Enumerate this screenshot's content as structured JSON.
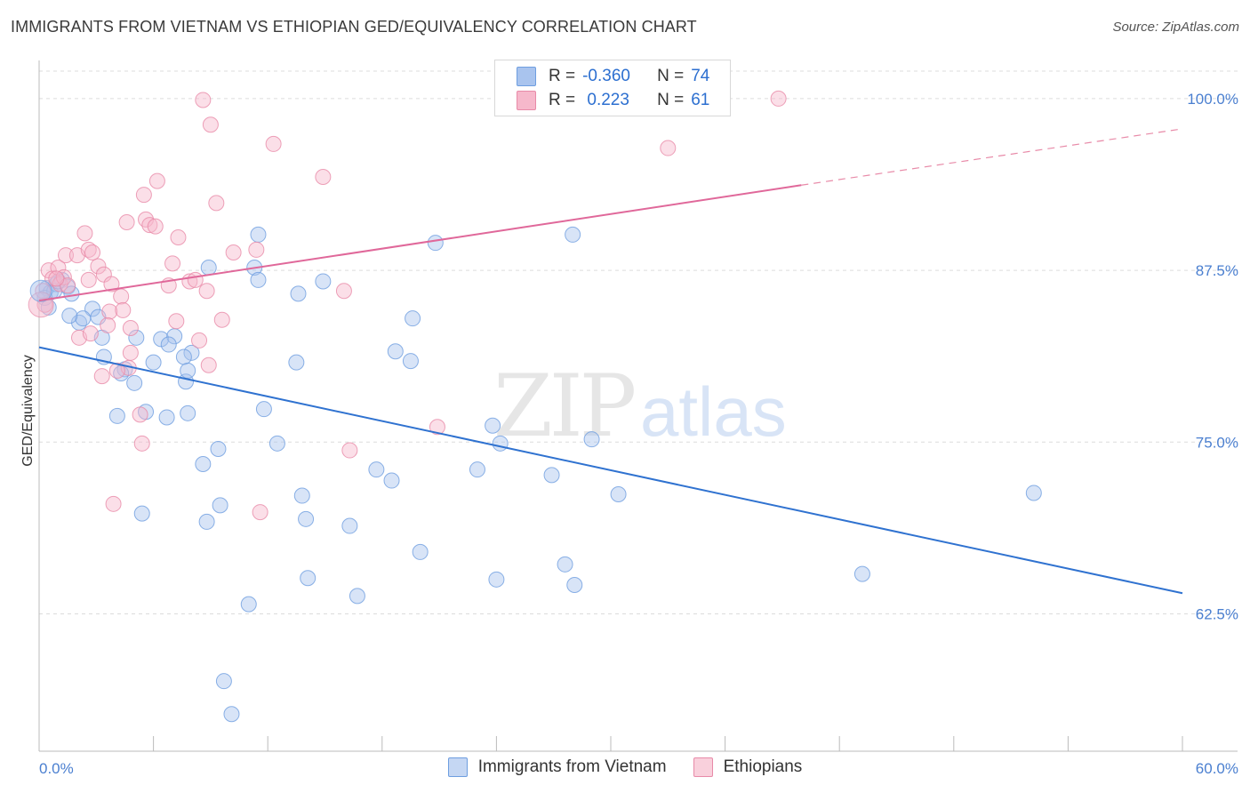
{
  "title": "IMMIGRANTS FROM VIETNAM VS ETHIOPIAN GED/EQUIVALENCY CORRELATION CHART",
  "source": "Source: ZipAtlas.com",
  "watermark": {
    "zip": "ZIP",
    "atlas": "atlas"
  },
  "legend": {
    "rows": [
      {
        "r_label": "R =",
        "r_value": "-0.360",
        "n_label": "N =",
        "n_value": "74",
        "color": "#a9c4ee",
        "border": "#6e9ee0"
      },
      {
        "r_label": "R =",
        "r_value": " 0.223",
        "n_label": "N =",
        "n_value": "61",
        "color": "#f6b8cb",
        "border": "#e88aa8"
      }
    ]
  },
  "bottom_legend": [
    {
      "label": "Immigrants from Vietnam",
      "color": "#c5d7f3",
      "border": "#6e9ee0"
    },
    {
      "label": "Ethiopians",
      "color": "#f9d0dc",
      "border": "#e88aa8"
    }
  ],
  "chart_data": {
    "type": "scatter",
    "title": "IMMIGRANTS FROM VIETNAM VS ETHIOPIAN GED/EQUIVALENCY CORRELATION CHART",
    "xlabel": "",
    "ylabel": "GED/Equivalency",
    "xlim": [
      0,
      60
    ],
    "ylim": [
      52.5,
      102
    ],
    "x_tick_labels": [
      "0.0%",
      "60.0%"
    ],
    "y_ticks": [
      62.5,
      75.0,
      87.5,
      100.0
    ],
    "y_tick_labels": [
      "62.5%",
      "75.0%",
      "87.5%",
      "100.0%"
    ],
    "grid": true,
    "legend_position": "top-center",
    "series": [
      {
        "name": "Immigrants from Vietnam",
        "color": "#6e9ee0",
        "fill": "#a9c4ee",
        "trend": {
          "x": [
            0,
            60
          ],
          "y": [
            81.9,
            64.0
          ],
          "dashed_from": null
        },
        "points": [
          [
            0.4,
            86.2
          ],
          [
            0.6,
            85.9
          ],
          [
            0.9,
            86.5
          ],
          [
            1.2,
            86.8
          ],
          [
            1.5,
            86.3
          ],
          [
            1.7,
            85.8
          ],
          [
            0.3,
            85.5
          ],
          [
            2.1,
            83.7
          ],
          [
            2.8,
            84.7
          ],
          [
            2.3,
            84.0
          ],
          [
            3.1,
            84.1
          ],
          [
            3.3,
            82.6
          ],
          [
            3.4,
            81.2
          ],
          [
            4.5,
            80.3
          ],
          [
            4.3,
            80.0
          ],
          [
            5.1,
            82.6
          ],
          [
            5.0,
            79.3
          ],
          [
            6.4,
            82.5
          ],
          [
            6.0,
            80.8
          ],
          [
            7.1,
            82.7
          ],
          [
            8.0,
            81.5
          ],
          [
            7.6,
            81.2
          ],
          [
            7.7,
            79.4
          ],
          [
            7.8,
            80.2
          ],
          [
            4.1,
            76.9
          ],
          [
            5.6,
            77.2
          ],
          [
            6.7,
            76.8
          ],
          [
            7.8,
            77.1
          ],
          [
            8.9,
            87.7
          ],
          [
            11.3,
            87.7
          ],
          [
            11.5,
            86.8
          ],
          [
            11.5,
            90.1
          ],
          [
            13.6,
            85.8
          ],
          [
            14.9,
            86.7
          ],
          [
            13.5,
            80.8
          ],
          [
            11.8,
            77.4
          ],
          [
            12.5,
            74.9
          ],
          [
            9.4,
            74.5
          ],
          [
            8.6,
            73.4
          ],
          [
            5.4,
            69.8
          ],
          [
            8.8,
            69.2
          ],
          [
            9.5,
            70.4
          ],
          [
            13.8,
            71.1
          ],
          [
            14.0,
            69.4
          ],
          [
            16.3,
            68.9
          ],
          [
            17.7,
            73.0
          ],
          [
            18.5,
            72.2
          ],
          [
            18.7,
            81.6
          ],
          [
            19.5,
            80.9
          ],
          [
            20.0,
            67.0
          ],
          [
            19.6,
            84.0
          ],
          [
            20.8,
            89.5
          ],
          [
            14.1,
            65.1
          ],
          [
            16.7,
            63.8
          ],
          [
            11.0,
            63.2
          ],
          [
            9.7,
            57.6
          ],
          [
            10.1,
            55.2
          ],
          [
            23.0,
            73.0
          ],
          [
            23.8,
            76.2
          ],
          [
            24.2,
            74.9
          ],
          [
            26.9,
            72.6
          ],
          [
            24.0,
            65.0
          ],
          [
            29.0,
            75.2
          ],
          [
            30.4,
            71.2
          ],
          [
            28.0,
            90.1
          ],
          [
            27.6,
            66.1
          ],
          [
            28.1,
            64.6
          ],
          [
            43.2,
            65.4
          ],
          [
            52.2,
            71.3
          ],
          [
            0.8,
            86.0
          ],
          [
            1.0,
            86.7
          ],
          [
            0.5,
            84.8
          ],
          [
            6.8,
            82.1
          ],
          [
            1.6,
            84.2
          ]
        ]
      },
      {
        "name": "Ethiopians",
        "color": "#e88aa8",
        "fill": "#f6b8cb",
        "trend": {
          "x": [
            0,
            40
          ],
          "y": [
            85.3,
            93.7
          ],
          "dashed_from": 40,
          "dashed_to": [
            60,
            97.8
          ]
        },
        "points": [
          [
            0.3,
            85.0
          ],
          [
            0.5,
            87.5
          ],
          [
            0.7,
            86.9
          ],
          [
            1.0,
            87.7
          ],
          [
            1.1,
            86.5
          ],
          [
            1.3,
            87.0
          ],
          [
            1.4,
            88.6
          ],
          [
            1.5,
            86.4
          ],
          [
            2.0,
            88.6
          ],
          [
            2.4,
            90.2
          ],
          [
            2.6,
            89.0
          ],
          [
            2.8,
            88.8
          ],
          [
            2.6,
            86.8
          ],
          [
            3.1,
            87.8
          ],
          [
            3.4,
            87.2
          ],
          [
            3.7,
            84.5
          ],
          [
            3.8,
            86.5
          ],
          [
            3.6,
            83.5
          ],
          [
            2.1,
            82.6
          ],
          [
            2.7,
            82.9
          ],
          [
            4.3,
            85.6
          ],
          [
            4.4,
            84.6
          ],
          [
            4.8,
            83.3
          ],
          [
            4.8,
            81.5
          ],
          [
            4.7,
            80.4
          ],
          [
            3.3,
            79.8
          ],
          [
            4.1,
            80.2
          ],
          [
            5.6,
            91.2
          ],
          [
            5.8,
            90.8
          ],
          [
            6.1,
            90.7
          ],
          [
            5.5,
            93.0
          ],
          [
            6.2,
            94.0
          ],
          [
            4.6,
            91.0
          ],
          [
            7.3,
            89.9
          ],
          [
            7.0,
            88.0
          ],
          [
            6.8,
            86.4
          ],
          [
            7.2,
            83.8
          ],
          [
            7.9,
            86.7
          ],
          [
            8.2,
            86.8
          ],
          [
            8.8,
            86.0
          ],
          [
            8.4,
            82.4
          ],
          [
            8.9,
            80.6
          ],
          [
            9.6,
            83.9
          ],
          [
            9.3,
            92.4
          ],
          [
            10.2,
            88.8
          ],
          [
            11.4,
            89.0
          ],
          [
            12.3,
            96.7
          ],
          [
            14.9,
            94.3
          ],
          [
            16.0,
            86.0
          ],
          [
            8.6,
            99.9
          ],
          [
            9.0,
            98.1
          ],
          [
            5.3,
            77.0
          ],
          [
            5.4,
            74.9
          ],
          [
            3.9,
            70.5
          ],
          [
            11.6,
            69.9
          ],
          [
            16.3,
            74.4
          ],
          [
            20.9,
            76.1
          ],
          [
            33.0,
            96.4
          ],
          [
            38.8,
            100.0
          ],
          [
            0.2,
            86.0
          ],
          [
            0.9,
            86.9
          ]
        ]
      }
    ]
  }
}
